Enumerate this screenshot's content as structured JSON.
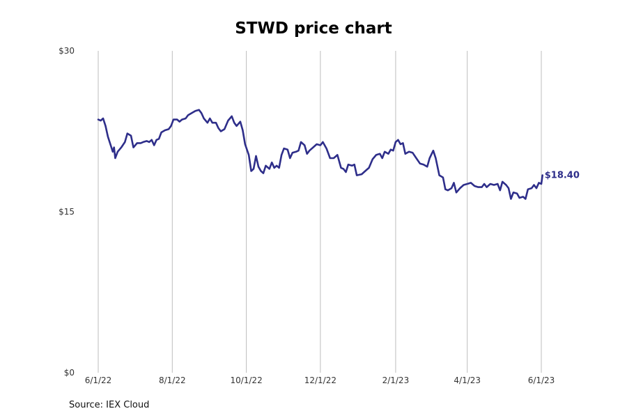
{
  "chart_data": {
    "type": "line",
    "title": "STWD price chart",
    "source": "Source: IEX Cloud",
    "xlabel": "",
    "ylabel": "",
    "x_tick_labels": [
      "6/1/22",
      "8/1/22",
      "10/1/22",
      "12/1/22",
      "2/1/23",
      "4/1/23",
      "6/1/23"
    ],
    "y_tick_labels": [
      "$0",
      "$15",
      "$30"
    ],
    "ylim": [
      0,
      30
    ],
    "xlim": [
      "2022-06-01",
      "2023-06-01"
    ],
    "grid": "vertical",
    "line_color": "#2e2e8a",
    "last_value_label": "$18.40",
    "series": [
      {
        "points": [
          [
            "2022-06-01",
            23.6
          ],
          [
            "2022-06-03",
            23.5
          ],
          [
            "2022-06-05",
            23.7
          ],
          [
            "2022-06-07",
            23.0
          ],
          [
            "2022-06-09",
            22.0
          ],
          [
            "2022-06-11",
            21.3
          ],
          [
            "2022-06-13",
            20.6
          ],
          [
            "2022-06-14",
            21.0
          ],
          [
            "2022-06-15",
            20.0
          ],
          [
            "2022-06-17",
            20.6
          ],
          [
            "2022-06-20",
            21.0
          ],
          [
            "2022-06-23",
            21.5
          ],
          [
            "2022-06-25",
            22.3
          ],
          [
            "2022-06-28",
            22.1
          ],
          [
            "2022-06-30",
            21.0
          ],
          [
            "2022-07-03",
            21.4
          ],
          [
            "2022-07-06",
            21.4
          ],
          [
            "2022-07-08",
            21.5
          ],
          [
            "2022-07-11",
            21.6
          ],
          [
            "2022-07-13",
            21.5
          ],
          [
            "2022-07-15",
            21.7
          ],
          [
            "2022-07-17",
            21.2
          ],
          [
            "2022-07-19",
            21.7
          ],
          [
            "2022-07-21",
            21.8
          ],
          [
            "2022-07-23",
            22.4
          ],
          [
            "2022-07-26",
            22.6
          ],
          [
            "2022-07-29",
            22.7
          ],
          [
            "2022-07-31",
            23.0
          ],
          [
            "2022-08-02",
            23.6
          ],
          [
            "2022-08-05",
            23.6
          ],
          [
            "2022-08-07",
            23.4
          ],
          [
            "2022-08-09",
            23.6
          ],
          [
            "2022-08-12",
            23.7
          ],
          [
            "2022-08-14",
            24.0
          ],
          [
            "2022-08-17",
            24.2
          ],
          [
            "2022-08-20",
            24.4
          ],
          [
            "2022-08-23",
            24.5
          ],
          [
            "2022-08-25",
            24.2
          ],
          [
            "2022-08-27",
            23.7
          ],
          [
            "2022-08-30",
            23.3
          ],
          [
            "2022-09-01",
            23.7
          ],
          [
            "2022-09-03",
            23.3
          ],
          [
            "2022-09-06",
            23.3
          ],
          [
            "2022-09-08",
            22.8
          ],
          [
            "2022-09-10",
            22.5
          ],
          [
            "2022-09-13",
            22.7
          ],
          [
            "2022-09-16",
            23.5
          ],
          [
            "2022-09-19",
            23.9
          ],
          [
            "2022-09-21",
            23.3
          ],
          [
            "2022-09-23",
            23.0
          ],
          [
            "2022-09-26",
            23.4
          ],
          [
            "2022-09-28",
            22.6
          ],
          [
            "2022-09-30",
            21.3
          ],
          [
            "2022-10-03",
            20.3
          ],
          [
            "2022-10-05",
            18.8
          ],
          [
            "2022-10-07",
            19.0
          ],
          [
            "2022-10-09",
            20.2
          ],
          [
            "2022-10-11",
            19.2
          ],
          [
            "2022-10-13",
            18.8
          ],
          [
            "2022-10-15",
            18.6
          ],
          [
            "2022-10-17",
            19.3
          ],
          [
            "2022-10-20",
            19.0
          ],
          [
            "2022-10-22",
            19.6
          ],
          [
            "2022-10-24",
            19.1
          ],
          [
            "2022-10-26",
            19.3
          ],
          [
            "2022-10-28",
            19.1
          ],
          [
            "2022-10-30",
            20.3
          ],
          [
            "2022-11-01",
            20.9
          ],
          [
            "2022-11-04",
            20.8
          ],
          [
            "2022-11-06",
            20.0
          ],
          [
            "2022-11-08",
            20.5
          ],
          [
            "2022-11-11",
            20.6
          ],
          [
            "2022-11-13",
            20.7
          ],
          [
            "2022-11-15",
            21.5
          ],
          [
            "2022-11-18",
            21.2
          ],
          [
            "2022-11-20",
            20.4
          ],
          [
            "2022-11-22",
            20.7
          ],
          [
            "2022-11-25",
            21.0
          ],
          [
            "2022-11-28",
            21.3
          ],
          [
            "2022-12-01",
            21.2
          ],
          [
            "2022-12-03",
            21.5
          ],
          [
            "2022-12-06",
            20.9
          ],
          [
            "2022-12-09",
            20.0
          ],
          [
            "2022-12-12",
            20.0
          ],
          [
            "2022-12-15",
            20.3
          ],
          [
            "2022-12-18",
            19.1
          ],
          [
            "2022-12-20",
            19.0
          ],
          [
            "2022-12-22",
            18.7
          ],
          [
            "2022-12-24",
            19.4
          ],
          [
            "2022-12-27",
            19.3
          ],
          [
            "2022-12-29",
            19.4
          ],
          [
            "2022-12-31",
            18.4
          ],
          [
            "2023-01-04",
            18.5
          ],
          [
            "2023-01-06",
            18.7
          ],
          [
            "2023-01-08",
            18.9
          ],
          [
            "2023-01-10",
            19.1
          ],
          [
            "2023-01-13",
            19.9
          ],
          [
            "2023-01-16",
            20.3
          ],
          [
            "2023-01-19",
            20.4
          ],
          [
            "2023-01-21",
            20.0
          ],
          [
            "2023-01-23",
            20.6
          ],
          [
            "2023-01-26",
            20.4
          ],
          [
            "2023-01-28",
            20.8
          ],
          [
            "2023-01-30",
            20.7
          ],
          [
            "2023-02-01",
            21.5
          ],
          [
            "2023-02-03",
            21.7
          ],
          [
            "2023-02-05",
            21.3
          ],
          [
            "2023-02-07",
            21.4
          ],
          [
            "2023-02-09",
            20.4
          ],
          [
            "2023-02-12",
            20.6
          ],
          [
            "2023-02-15",
            20.5
          ],
          [
            "2023-02-18",
            20.0
          ],
          [
            "2023-02-21",
            19.5
          ],
          [
            "2023-02-24",
            19.4
          ],
          [
            "2023-02-27",
            19.2
          ],
          [
            "2023-03-01",
            20.0
          ],
          [
            "2023-03-04",
            20.7
          ],
          [
            "2023-03-06",
            20.0
          ],
          [
            "2023-03-09",
            18.4
          ],
          [
            "2023-03-12",
            18.2
          ],
          [
            "2023-03-14",
            17.1
          ],
          [
            "2023-03-16",
            17.0
          ],
          [
            "2023-03-19",
            17.2
          ],
          [
            "2023-03-21",
            17.7
          ],
          [
            "2023-03-23",
            16.8
          ],
          [
            "2023-03-26",
            17.2
          ],
          [
            "2023-03-29",
            17.5
          ],
          [
            "2023-04-01",
            17.6
          ],
          [
            "2023-04-04",
            17.7
          ],
          [
            "2023-04-07",
            17.4
          ],
          [
            "2023-04-10",
            17.3
          ],
          [
            "2023-04-13",
            17.3
          ],
          [
            "2023-04-15",
            17.6
          ],
          [
            "2023-04-17",
            17.3
          ],
          [
            "2023-04-20",
            17.6
          ],
          [
            "2023-04-23",
            17.5
          ],
          [
            "2023-04-26",
            17.6
          ],
          [
            "2023-04-28",
            17.0
          ],
          [
            "2023-04-30",
            17.8
          ],
          [
            "2023-05-03",
            17.5
          ],
          [
            "2023-05-05",
            17.2
          ],
          [
            "2023-05-07",
            16.2
          ],
          [
            "2023-05-09",
            16.8
          ],
          [
            "2023-05-12",
            16.7
          ],
          [
            "2023-05-14",
            16.3
          ],
          [
            "2023-05-17",
            16.4
          ],
          [
            "2023-05-19",
            16.2
          ],
          [
            "2023-05-21",
            17.1
          ],
          [
            "2023-05-24",
            17.2
          ],
          [
            "2023-05-26",
            17.5
          ],
          [
            "2023-05-28",
            17.2
          ],
          [
            "2023-05-30",
            17.7
          ],
          [
            "2023-06-01",
            17.6
          ],
          [
            "2023-06-02",
            18.4
          ]
        ]
      }
    ]
  }
}
